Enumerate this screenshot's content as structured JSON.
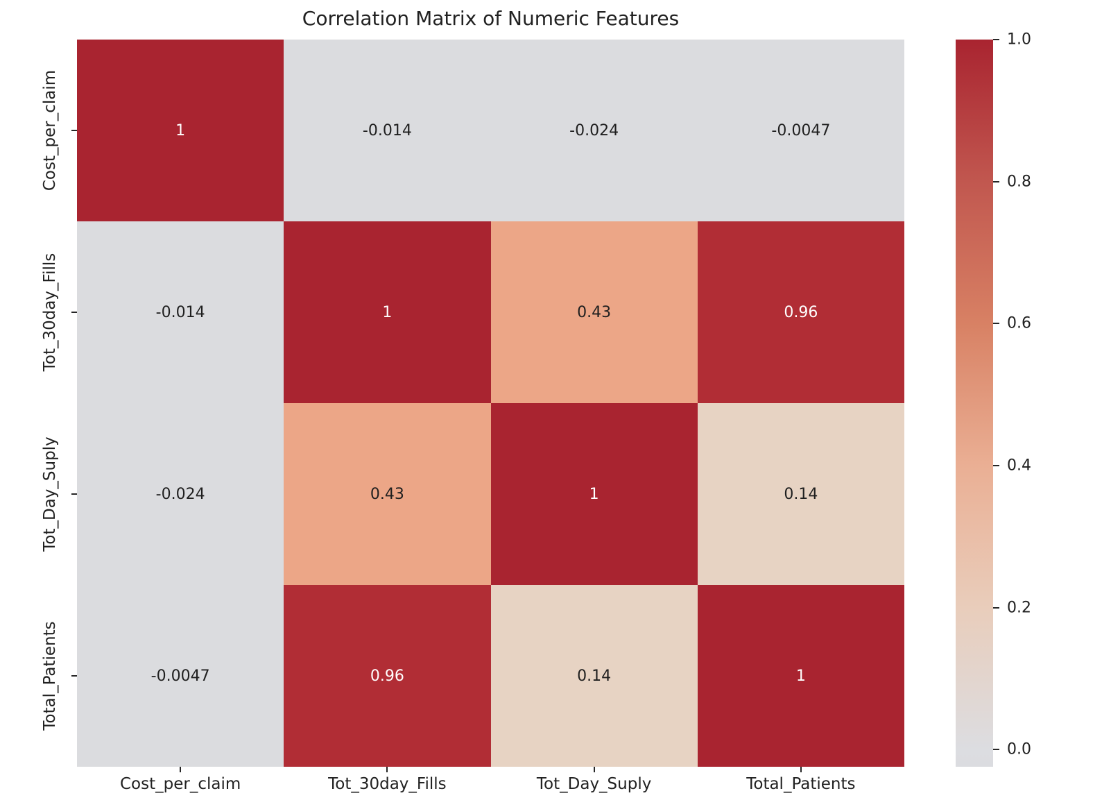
{
  "chart_data": {
    "type": "heatmap",
    "title": "Correlation Matrix of Numeric Features",
    "x_labels": [
      "Cost_per_claim",
      "Tot_30day_Fills",
      "Tot_Day_Suply",
      "Total_Patients"
    ],
    "y_labels": [
      "Cost_per_claim",
      "Tot_30day_Fills",
      "Tot_Day_Suply",
      "Total_Patients"
    ],
    "matrix": [
      [
        1,
        -0.014,
        -0.024,
        -0.0047
      ],
      [
        -0.014,
        1,
        0.43,
        0.96
      ],
      [
        -0.024,
        0.43,
        1,
        0.14
      ],
      [
        -0.0047,
        0.96,
        0.14,
        1
      ]
    ],
    "cell_labels": [
      [
        "1",
        "-0.014",
        "-0.024",
        "-0.0047"
      ],
      [
        "-0.014",
        "1",
        "0.43",
        "0.96"
      ],
      [
        "-0.024",
        "0.43",
        "1",
        "0.14"
      ],
      [
        "-0.0047",
        "0.96",
        "0.14",
        "1"
      ]
    ],
    "cell_colors": [
      [
        "#a92430",
        "#dbdcdf",
        "#dbdcdf",
        "#dbdcdf"
      ],
      [
        "#dbdcdf",
        "#a92430",
        "#eca687",
        "#b12d35"
      ],
      [
        "#dbdcdf",
        "#eca687",
        "#a92430",
        "#e7d3c3"
      ],
      [
        "#dbdcdf",
        "#b12d35",
        "#e7d3c3",
        "#a92430"
      ]
    ],
    "cell_text_colors": [
      [
        "#ffffff",
        "#1f1f1f",
        "#1f1f1f",
        "#1f1f1f"
      ],
      [
        "#1f1f1f",
        "#ffffff",
        "#1f1f1f",
        "#ffffff"
      ],
      [
        "#1f1f1f",
        "#1f1f1f",
        "#ffffff",
        "#1f1f1f"
      ],
      [
        "#1f1f1f",
        "#ffffff",
        "#1f1f1f",
        "#ffffff"
      ]
    ],
    "grid": false,
    "legend_position": "none",
    "colorbar": {
      "vmin": -0.024,
      "vmax": 1.0,
      "ticks": [
        {
          "label": "1.0",
          "value": 1.0
        },
        {
          "label": "0.8",
          "value": 0.8
        },
        {
          "label": "0.6",
          "value": 0.6
        },
        {
          "label": "0.4",
          "value": 0.4
        },
        {
          "label": "0.2",
          "value": 0.2
        },
        {
          "label": "0.0",
          "value": 0.0
        }
      ],
      "gradient": [
        {
          "color": "#a92430",
          "pos": 0
        },
        {
          "color": "#c1574f",
          "pos": 19.5
        },
        {
          "color": "#d88164",
          "pos": 39.1
        },
        {
          "color": "#eaaf94",
          "pos": 58.6
        },
        {
          "color": "#e9cdbb",
          "pos": 78.1
        },
        {
          "color": "#dcdde1",
          "pos": 97.7
        },
        {
          "color": "#dbdce0",
          "pos": 100
        }
      ]
    }
  }
}
